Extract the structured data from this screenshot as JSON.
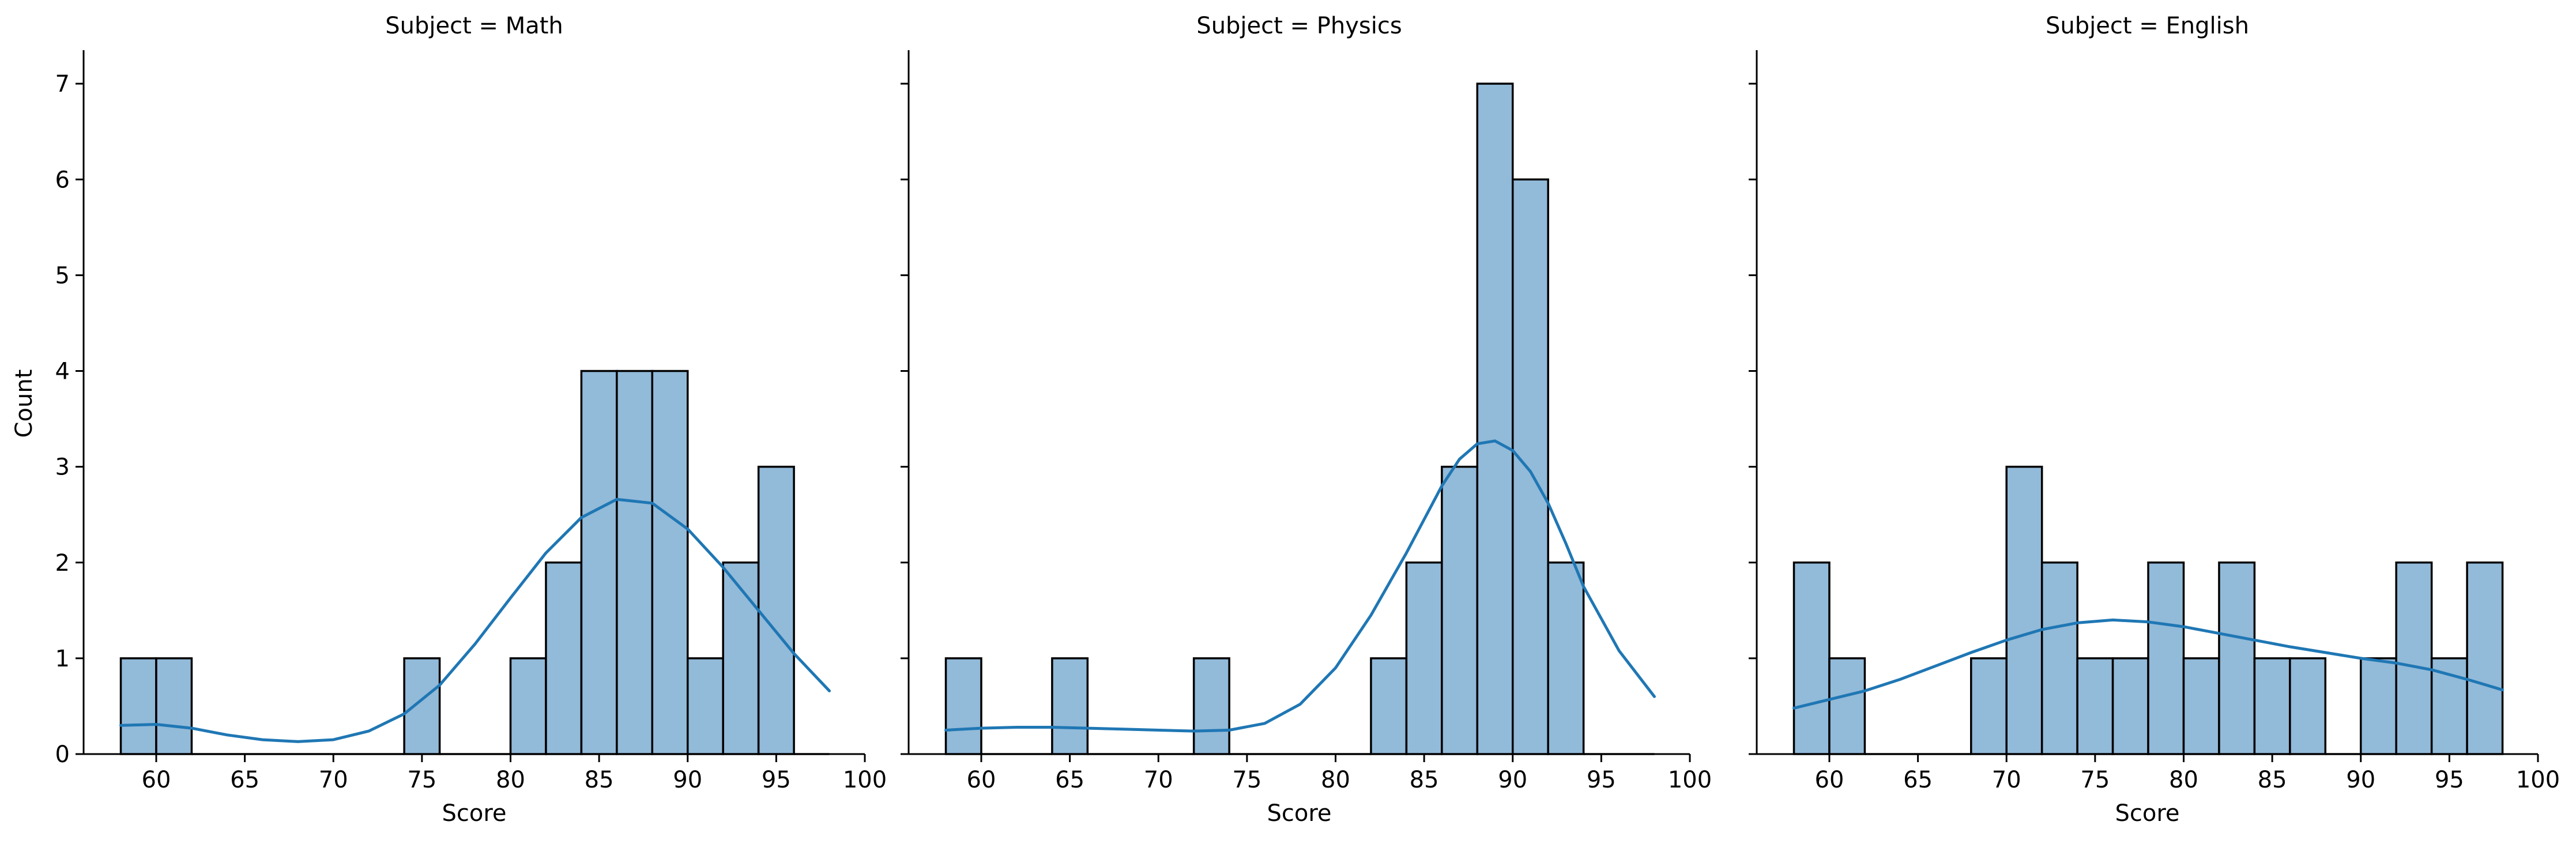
{
  "ylabel": "Count",
  "colors": {
    "bar_fill": "#92bad9",
    "bar_edge": "#000000",
    "kde_line": "#1f77b4",
    "axis": "#000000"
  },
  "chart_data": [
    {
      "type": "bar",
      "subtype": "histogram-with-kde",
      "title": "Subject = Math",
      "xlabel": "Score",
      "ylabel": "Count",
      "xlim": [
        55.9,
        100
      ],
      "ylim": [
        0,
        7.35
      ],
      "xticks": [
        60,
        65,
        70,
        75,
        80,
        85,
        90,
        95,
        100
      ],
      "yticks": [
        0,
        1,
        2,
        3,
        4,
        5,
        6,
        7
      ],
      "bin_width": 2,
      "bin_starts": [
        58,
        60,
        62,
        64,
        66,
        68,
        70,
        72,
        74,
        76,
        78,
        80,
        82,
        84,
        86,
        88,
        90,
        92,
        94,
        96
      ],
      "counts": [
        1,
        1,
        0,
        0,
        0,
        0,
        0,
        0,
        1,
        0,
        0,
        1,
        2,
        4,
        4,
        4,
        1,
        2,
        3,
        0
      ],
      "kde": {
        "x": [
          58,
          60,
          62,
          64,
          66,
          68,
          70,
          72,
          74,
          76,
          78,
          80,
          82,
          84,
          86,
          88,
          90,
          92,
          94,
          96,
          98
        ],
        "y": [
          0.3,
          0.31,
          0.27,
          0.2,
          0.15,
          0.13,
          0.15,
          0.24,
          0.42,
          0.72,
          1.15,
          1.63,
          2.1,
          2.47,
          2.66,
          2.62,
          2.35,
          1.95,
          1.5,
          1.05,
          0.66
        ]
      }
    },
    {
      "type": "bar",
      "subtype": "histogram-with-kde",
      "title": "Subject = Physics",
      "xlabel": "Score",
      "ylabel": "Count",
      "xlim": [
        55.9,
        100
      ],
      "ylim": [
        0,
        7.35
      ],
      "xticks": [
        60,
        65,
        70,
        75,
        80,
        85,
        90,
        95,
        100
      ],
      "yticks": [
        0,
        1,
        2,
        3,
        4,
        5,
        6,
        7
      ],
      "bin_width": 2,
      "bin_starts": [
        58,
        60,
        62,
        64,
        66,
        68,
        70,
        72,
        74,
        76,
        78,
        80,
        82,
        84,
        86,
        88,
        90,
        92,
        94,
        96
      ],
      "counts": [
        1,
        0,
        0,
        1,
        0,
        0,
        0,
        1,
        0,
        0,
        0,
        0,
        1,
        2,
        3,
        7,
        6,
        2,
        0,
        0
      ],
      "kde": {
        "x": [
          58,
          60,
          62,
          64,
          66,
          68,
          70,
          72,
          74,
          76,
          78,
          80,
          82,
          84,
          85,
          86,
          87,
          88,
          89,
          90,
          91,
          92,
          93,
          94,
          96,
          98
        ],
        "y": [
          0.25,
          0.27,
          0.28,
          0.28,
          0.27,
          0.26,
          0.25,
          0.24,
          0.25,
          0.32,
          0.52,
          0.9,
          1.45,
          2.1,
          2.45,
          2.8,
          3.08,
          3.24,
          3.27,
          3.17,
          2.95,
          2.62,
          2.2,
          1.75,
          1.08,
          0.6
        ]
      }
    },
    {
      "type": "bar",
      "subtype": "histogram-with-kde",
      "title": "Subject = English",
      "xlabel": "Score",
      "ylabel": "Count",
      "xlim": [
        55.9,
        100
      ],
      "ylim": [
        0,
        7.35
      ],
      "xticks": [
        60,
        65,
        70,
        75,
        80,
        85,
        90,
        95,
        100
      ],
      "yticks": [
        0,
        1,
        2,
        3,
        4,
        5,
        6,
        7
      ],
      "bin_width": 2,
      "bin_starts": [
        58,
        60,
        62,
        64,
        66,
        68,
        70,
        72,
        74,
        76,
        78,
        80,
        82,
        84,
        86,
        88,
        90,
        92,
        94,
        96
      ],
      "counts": [
        2,
        1,
        0,
        0,
        0,
        1,
        3,
        2,
        1,
        1,
        2,
        1,
        2,
        1,
        1,
        0,
        1,
        2,
        1,
        2
      ],
      "kde": {
        "x": [
          58,
          60,
          62,
          64,
          66,
          68,
          70,
          72,
          74,
          76,
          78,
          80,
          82,
          84,
          86,
          88,
          90,
          92,
          94,
          96,
          98
        ],
        "y": [
          0.48,
          0.57,
          0.66,
          0.78,
          0.92,
          1.06,
          1.19,
          1.3,
          1.37,
          1.4,
          1.38,
          1.33,
          1.26,
          1.19,
          1.12,
          1.06,
          1.0,
          0.95,
          0.88,
          0.78,
          0.67
        ]
      }
    }
  ]
}
